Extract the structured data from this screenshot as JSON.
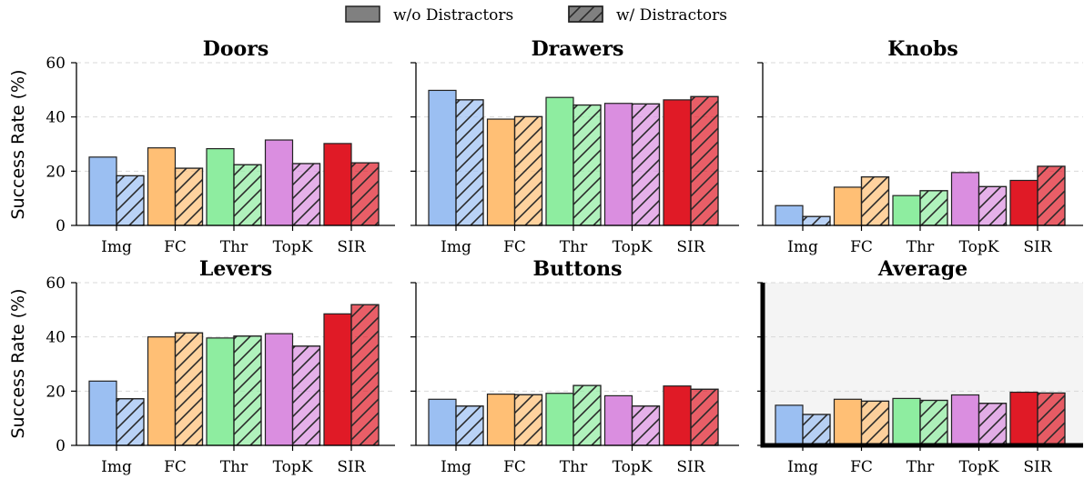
{
  "legend": {
    "items": [
      {
        "label": "w/o Distractors",
        "hatched": false
      },
      {
        "label": "w/ Distractors",
        "hatched": true
      }
    ]
  },
  "colors": {
    "Img": "#9bbff2",
    "FC": "#ffbf75",
    "Thr": "#8eeda0",
    "TopK": "#da8ee0",
    "SIR": "#e01a26",
    "legend_swatch": "#808080",
    "highlight_bg": "#f4f4f4"
  },
  "chart_data": [
    {
      "type": "bar",
      "title": "Doors",
      "ylabel": "Success Rate (%)",
      "ylim": [
        0,
        60
      ],
      "yticks": [
        0,
        20,
        40,
        60
      ],
      "categories": [
        "Img",
        "FC",
        "Thr",
        "TopK",
        "SIR"
      ],
      "series": [
        {
          "name": "w/o Distractors",
          "values": [
            25.2,
            28.6,
            28.3,
            31.5,
            30.2
          ]
        },
        {
          "name": "w/ Distractors",
          "values": [
            18.3,
            21.1,
            22.4,
            22.8,
            23.1
          ]
        }
      ]
    },
    {
      "type": "bar",
      "title": "Drawers",
      "ylabel": "",
      "ylim": [
        0,
        60
      ],
      "yticks": [
        0,
        20,
        40,
        60
      ],
      "categories": [
        "Img",
        "FC",
        "Thr",
        "TopK",
        "SIR"
      ],
      "series": [
        {
          "name": "w/o Distractors",
          "values": [
            49.8,
            39.2,
            47.2,
            45.0,
            46.3
          ]
        },
        {
          "name": "w/ Distractors",
          "values": [
            46.3,
            40.1,
            44.4,
            44.8,
            47.5
          ]
        }
      ]
    },
    {
      "type": "bar",
      "title": "Knobs",
      "ylabel": "",
      "ylim": [
        0,
        60
      ],
      "yticks": [
        0,
        20,
        40,
        60
      ],
      "categories": [
        "Img",
        "FC",
        "Thr",
        "TopK",
        "SIR"
      ],
      "series": [
        {
          "name": "w/o Distractors",
          "values": [
            7.3,
            14.1,
            11.0,
            19.5,
            16.6
          ]
        },
        {
          "name": "w/ Distractors",
          "values": [
            3.3,
            17.9,
            12.8,
            14.3,
            21.8
          ]
        }
      ]
    },
    {
      "type": "bar",
      "title": "Levers",
      "ylabel": "Success Rate (%)",
      "ylim": [
        0,
        60
      ],
      "yticks": [
        0,
        20,
        40,
        60
      ],
      "categories": [
        "Img",
        "FC",
        "Thr",
        "TopK",
        "SIR"
      ],
      "series": [
        {
          "name": "w/o Distractors",
          "values": [
            23.7,
            40.0,
            39.6,
            41.2,
            48.5
          ]
        },
        {
          "name": "w/ Distractors",
          "values": [
            17.2,
            41.5,
            40.3,
            36.6,
            51.9
          ]
        }
      ]
    },
    {
      "type": "bar",
      "title": "Buttons",
      "ylabel": "",
      "ylim": [
        0,
        60
      ],
      "yticks": [
        0,
        20,
        40,
        60
      ],
      "categories": [
        "Img",
        "FC",
        "Thr",
        "TopK",
        "SIR"
      ],
      "series": [
        {
          "name": "w/o Distractors",
          "values": [
            17.0,
            18.9,
            19.2,
            18.3,
            21.9
          ]
        },
        {
          "name": "w/ Distractors",
          "values": [
            14.5,
            18.7,
            22.1,
            14.5,
            20.7
          ]
        }
      ]
    },
    {
      "type": "bar",
      "title": "Average",
      "ylabel": "",
      "ylim": [
        0,
        60
      ],
      "yticks": [
        0,
        20,
        40,
        60
      ],
      "categories": [
        "Img",
        "FC",
        "Thr",
        "TopK",
        "SIR"
      ],
      "highlighted": true,
      "series": [
        {
          "name": "w/o Distractors",
          "values": [
            14.8,
            17.0,
            17.3,
            18.6,
            19.6
          ]
        },
        {
          "name": "w/ Distractors",
          "values": [
            11.4,
            16.3,
            16.6,
            15.5,
            19.3
          ]
        }
      ]
    }
  ]
}
